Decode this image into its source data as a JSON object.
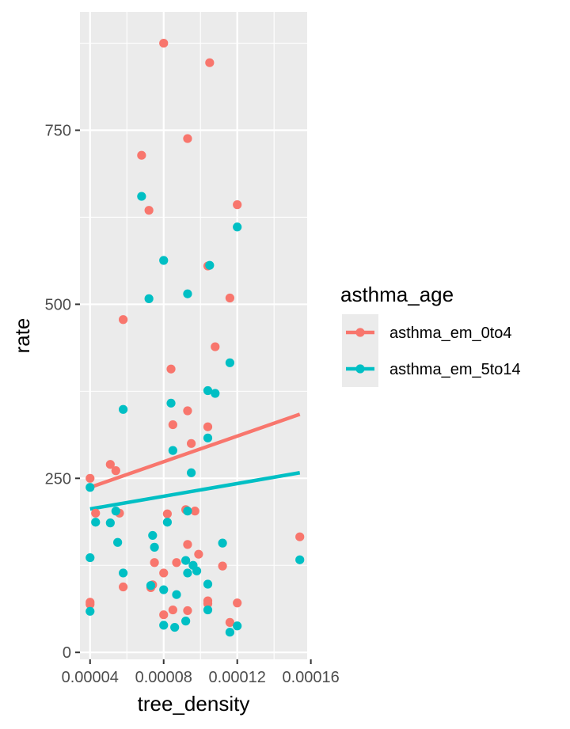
{
  "chart_data": {
    "type": "scatter",
    "xlabel": "tree_density",
    "ylabel": "rate",
    "xlim": [
      3.45e-05,
      0.000158
    ],
    "ylim": [
      -10,
      920
    ],
    "x_ticks": [
      4e-05,
      8e-05,
      0.00012,
      0.00016
    ],
    "x_tick_labels": [
      "0.00004",
      "0.00008",
      "0.00012",
      "0.00016"
    ],
    "y_ticks": [
      0,
      250,
      500,
      750
    ],
    "y_tick_labels": [
      "0",
      "250",
      "500",
      "750"
    ],
    "grid": true,
    "legend_title": "asthma_age",
    "legend_position": "right",
    "series": [
      {
        "name": "asthma_em_0to4",
        "color": "#F8766D",
        "points": [
          [
            8e-05,
            875
          ],
          [
            0.000105,
            847
          ],
          [
            9.3e-05,
            738
          ],
          [
            6.8e-05,
            714
          ],
          [
            7.2e-05,
            635
          ],
          [
            0.00012,
            643
          ],
          [
            0.000104,
            555
          ],
          [
            0.000116,
            509
          ],
          [
            5.8e-05,
            478
          ],
          [
            0.000108,
            439
          ],
          [
            8.4e-05,
            407
          ],
          [
            9.3e-05,
            347
          ],
          [
            8.5e-05,
            327
          ],
          [
            0.000104,
            324
          ],
          [
            9.5e-05,
            300
          ],
          [
            5.1e-05,
            270
          ],
          [
            5.4e-05,
            261
          ],
          [
            4e-05,
            250
          ],
          [
            4.3e-05,
            200
          ],
          [
            5.6e-05,
            200
          ],
          [
            8.2e-05,
            199
          ],
          [
            9.2e-05,
            205
          ],
          [
            9.7e-05,
            203
          ],
          [
            9.3e-05,
            155
          ],
          [
            9.9e-05,
            141
          ],
          [
            7.5e-05,
            129
          ],
          [
            8.7e-05,
            129
          ],
          [
            0.000112,
            124
          ],
          [
            8e-05,
            114
          ],
          [
            5.8e-05,
            94
          ],
          [
            7.3e-05,
            93
          ],
          [
            7.4e-05,
            97
          ],
          [
            0.000104,
            74
          ],
          [
            0.000104,
            70
          ],
          [
            0.00012,
            71
          ],
          [
            4e-05,
            72
          ],
          [
            4e-05,
            69
          ],
          [
            8.5e-05,
            61
          ],
          [
            9.3e-05,
            60
          ],
          [
            8e-05,
            54
          ],
          [
            0.000116,
            43
          ],
          [
            0.000154,
            166
          ]
        ],
        "fit": [
          [
            4e-05,
            237
          ],
          [
            0.000154,
            342
          ]
        ]
      },
      {
        "name": "asthma_em_5to14",
        "color": "#00BFC4",
        "points": [
          [
            6.8e-05,
            655
          ],
          [
            0.00012,
            611
          ],
          [
            8e-05,
            563
          ],
          [
            0.000105,
            556
          ],
          [
            9.3e-05,
            515
          ],
          [
            7.2e-05,
            508
          ],
          [
            0.000116,
            416
          ],
          [
            0.000104,
            376
          ],
          [
            0.000108,
            372
          ],
          [
            5.8e-05,
            349
          ],
          [
            8.4e-05,
            358
          ],
          [
            0.000104,
            308
          ],
          [
            8.5e-05,
            290
          ],
          [
            9.5e-05,
            258
          ],
          [
            4e-05,
            237
          ],
          [
            5.4e-05,
            203
          ],
          [
            9.3e-05,
            203
          ],
          [
            4.3e-05,
            187
          ],
          [
            5.1e-05,
            186
          ],
          [
            8.2e-05,
            187
          ],
          [
            7.4e-05,
            168
          ],
          [
            5.5e-05,
            158
          ],
          [
            0.000112,
            157
          ],
          [
            7.5e-05,
            151
          ],
          [
            4e-05,
            136
          ],
          [
            9.2e-05,
            132
          ],
          [
            9.6e-05,
            125
          ],
          [
            0.000154,
            133
          ],
          [
            5.8e-05,
            114
          ],
          [
            9.3e-05,
            114
          ],
          [
            9.8e-05,
            117
          ],
          [
            0.000104,
            98
          ],
          [
            7.3e-05,
            96
          ],
          [
            8e-05,
            90
          ],
          [
            8.7e-05,
            83
          ],
          [
            4e-05,
            59
          ],
          [
            0.000104,
            61
          ],
          [
            9.2e-05,
            45
          ],
          [
            8e-05,
            39
          ],
          [
            8.6e-05,
            36
          ],
          [
            0.00012,
            38
          ],
          [
            0.000116,
            29
          ]
        ],
        "fit": [
          [
            4e-05,
            206
          ],
          [
            0.000154,
            258
          ]
        ]
      }
    ]
  }
}
